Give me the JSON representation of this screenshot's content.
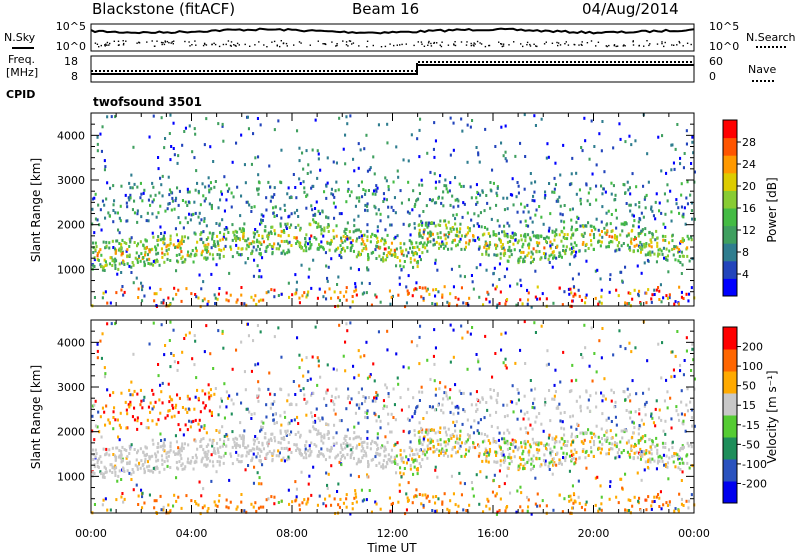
{
  "header": {
    "station": "Blackstone (fitACF)",
    "beam": "Beam 16",
    "date": "04/Aug/2014"
  },
  "sidepanel": {
    "nsky": "N.Sky",
    "nsearch": "N.Search",
    "freq_line1": "Freq.",
    "freq_line2": "[MHz]",
    "nave": "Nave",
    "cpid": "CPID",
    "cpid_value": "twofsound 3501"
  },
  "strip_ticks": {
    "noise_left": [
      "10^5",
      "10^0"
    ],
    "noise_right": [
      "10^5",
      "10^0"
    ],
    "freq_left": [
      "18",
      "8"
    ],
    "nave_right": [
      "60",
      "0"
    ]
  },
  "chart_data": [
    {
      "type": "heatmap",
      "name": "power",
      "ylabel": "Slant Range [km]",
      "xlabel": "Time UT",
      "x_ticks": [
        "00:00",
        "04:00",
        "08:00",
        "12:00",
        "16:00",
        "20:00",
        "00:00"
      ],
      "x_range_hours": [
        0,
        24
      ],
      "ylim": [
        180,
        4500
      ],
      "y_ticks": [
        1000,
        2000,
        3000,
        4000
      ],
      "colorbar": {
        "label": "Power [dB]",
        "ticks": [
          "28",
          "24",
          "20",
          "16",
          "12",
          "8",
          "4"
        ],
        "range": [
          0,
          32
        ],
        "colors": [
          "#0000ff",
          "#2244bb",
          "#2f7d8f",
          "#3f9f5f",
          "#44bb44",
          "#88cc33",
          "#ddcc00",
          "#ff9900",
          "#ff5500",
          "#ff0000"
        ]
      }
    },
    {
      "type": "heatmap",
      "name": "velocity",
      "ylabel": "Slant Range [km]",
      "xlabel": "Time UT",
      "x_ticks": [
        "00:00",
        "04:00",
        "08:00",
        "12:00",
        "16:00",
        "20:00",
        "00:00"
      ],
      "x_range_hours": [
        0,
        24
      ],
      "ylim": [
        180,
        4500
      ],
      "y_ticks": [
        1000,
        2000,
        3000,
        4000
      ],
      "colorbar": {
        "label": "Velocity [m s⁻¹]",
        "ticks": [
          "200",
          "100",
          "50",
          "15",
          "-15",
          "-50",
          "-100",
          "-200"
        ],
        "colors": [
          "#0000ee",
          "#2a52be",
          "#1e8e5a",
          "#55cc33",
          "#c8c8c8",
          "#ffaa00",
          "#ff6600",
          "#ff0000"
        ]
      }
    }
  ],
  "colors": {
    "ground_scatter": "#c8c8c8",
    "ink": "#000000"
  }
}
